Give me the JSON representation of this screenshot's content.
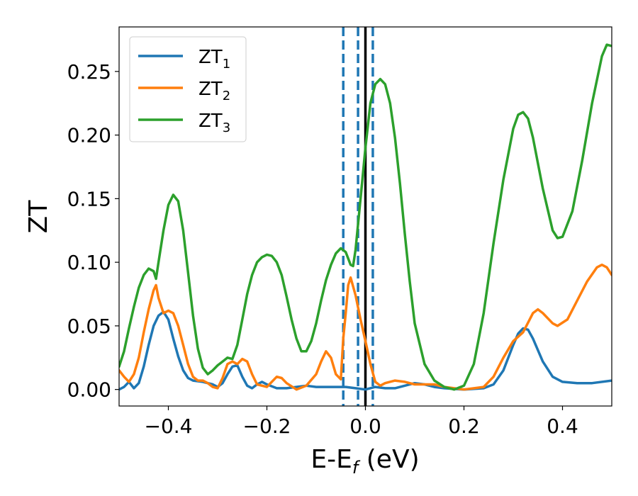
{
  "chart_data": {
    "type": "line",
    "xlabel_main": "E-E",
    "xlabel_sub": "f",
    "xlabel_unit": " (eV)",
    "ylabel": "ZT",
    "xlim": [
      -0.5,
      0.5
    ],
    "ylim": [
      -0.013,
      0.285
    ],
    "grid": false,
    "legend_position": "top-left",
    "x_ticks": [
      -0.4,
      -0.2,
      0.0,
      0.2,
      0.4
    ],
    "x_tick_labels": [
      "−0.4",
      "−0.2",
      "0.0",
      "0.2",
      "0.4"
    ],
    "y_ticks": [
      0.0,
      0.05,
      0.1,
      0.15,
      0.2,
      0.25
    ],
    "y_tick_labels": [
      "0.00",
      "0.05",
      "0.10",
      "0.15",
      "0.20",
      "0.25"
    ],
    "vlines": [
      {
        "x": -0.045,
        "style": "dashed",
        "color": "#1f77b4"
      },
      {
        "x": -0.015,
        "style": "dashed",
        "color": "#1f77b4"
      },
      {
        "x": 0.0,
        "style": "solid",
        "color": "#000000"
      },
      {
        "x": 0.015,
        "style": "dashed",
        "color": "#1f77b4"
      }
    ],
    "series": [
      {
        "name": "ZT",
        "sub": "1",
        "color": "#1f77b4",
        "points": [
          [
            -0.5,
            0.0
          ],
          [
            -0.49,
            0.002
          ],
          [
            -0.48,
            0.006
          ],
          [
            -0.47,
            0.001
          ],
          [
            -0.46,
            0.005
          ],
          [
            -0.45,
            0.018
          ],
          [
            -0.44,
            0.035
          ],
          [
            -0.43,
            0.05
          ],
          [
            -0.42,
            0.058
          ],
          [
            -0.41,
            0.061
          ],
          [
            -0.4,
            0.055
          ],
          [
            -0.39,
            0.04
          ],
          [
            -0.38,
            0.026
          ],
          [
            -0.37,
            0.015
          ],
          [
            -0.36,
            0.009
          ],
          [
            -0.35,
            0.007
          ],
          [
            -0.33,
            0.006
          ],
          [
            -0.31,
            0.004
          ],
          [
            -0.3,
            0.002
          ],
          [
            -0.29,
            0.005
          ],
          [
            -0.28,
            0.012
          ],
          [
            -0.27,
            0.018
          ],
          [
            -0.26,
            0.019
          ],
          [
            -0.25,
            0.01
          ],
          [
            -0.24,
            0.003
          ],
          [
            -0.23,
            0.001
          ],
          [
            -0.22,
            0.004
          ],
          [
            -0.21,
            0.006
          ],
          [
            -0.2,
            0.004
          ],
          [
            -0.18,
            0.001
          ],
          [
            -0.16,
            0.001
          ],
          [
            -0.14,
            0.002
          ],
          [
            -0.12,
            0.003
          ],
          [
            -0.1,
            0.002
          ],
          [
            -0.08,
            0.002
          ],
          [
            -0.06,
            0.002
          ],
          [
            -0.04,
            0.002
          ],
          [
            -0.02,
            0.001
          ],
          [
            0.0,
            0.0
          ],
          [
            0.02,
            0.002
          ],
          [
            0.04,
            0.001
          ],
          [
            0.06,
            0.001
          ],
          [
            0.08,
            0.003
          ],
          [
            0.1,
            0.005
          ],
          [
            0.12,
            0.004
          ],
          [
            0.14,
            0.002
          ],
          [
            0.16,
            0.001
          ],
          [
            0.2,
            0.0
          ],
          [
            0.24,
            0.001
          ],
          [
            0.26,
            0.004
          ],
          [
            0.28,
            0.015
          ],
          [
            0.3,
            0.035
          ],
          [
            0.31,
            0.044
          ],
          [
            0.32,
            0.048
          ],
          [
            0.33,
            0.047
          ],
          [
            0.34,
            0.04
          ],
          [
            0.36,
            0.022
          ],
          [
            0.38,
            0.01
          ],
          [
            0.4,
            0.006
          ],
          [
            0.43,
            0.005
          ],
          [
            0.46,
            0.005
          ],
          [
            0.5,
            0.007
          ]
        ]
      },
      {
        "name": "ZT",
        "sub": "2",
        "color": "#ff7f0e",
        "points": [
          [
            -0.5,
            0.015
          ],
          [
            -0.49,
            0.01
          ],
          [
            -0.48,
            0.006
          ],
          [
            -0.47,
            0.012
          ],
          [
            -0.46,
            0.025
          ],
          [
            -0.45,
            0.045
          ],
          [
            -0.44,
            0.063
          ],
          [
            -0.43,
            0.078
          ],
          [
            -0.425,
            0.082
          ],
          [
            -0.42,
            0.072
          ],
          [
            -0.41,
            0.06
          ],
          [
            -0.4,
            0.062
          ],
          [
            -0.39,
            0.06
          ],
          [
            -0.38,
            0.05
          ],
          [
            -0.37,
            0.035
          ],
          [
            -0.36,
            0.02
          ],
          [
            -0.35,
            0.01
          ],
          [
            -0.34,
            0.007
          ],
          [
            -0.33,
            0.007
          ],
          [
            -0.32,
            0.005
          ],
          [
            -0.31,
            0.002
          ],
          [
            -0.3,
            0.001
          ],
          [
            -0.29,
            0.009
          ],
          [
            -0.28,
            0.02
          ],
          [
            -0.27,
            0.022
          ],
          [
            -0.26,
            0.02
          ],
          [
            -0.25,
            0.024
          ],
          [
            -0.24,
            0.022
          ],
          [
            -0.23,
            0.012
          ],
          [
            -0.22,
            0.004
          ],
          [
            -0.2,
            0.002
          ],
          [
            -0.19,
            0.006
          ],
          [
            -0.18,
            0.01
          ],
          [
            -0.17,
            0.009
          ],
          [
            -0.16,
            0.005
          ],
          [
            -0.14,
            0.0
          ],
          [
            -0.12,
            0.003
          ],
          [
            -0.1,
            0.012
          ],
          [
            -0.09,
            0.022
          ],
          [
            -0.08,
            0.03
          ],
          [
            -0.07,
            0.025
          ],
          [
            -0.06,
            0.012
          ],
          [
            -0.05,
            0.008
          ],
          [
            -0.045,
            0.04
          ],
          [
            -0.04,
            0.06
          ],
          [
            -0.035,
            0.082
          ],
          [
            -0.03,
            0.088
          ],
          [
            -0.02,
            0.074
          ],
          [
            -0.01,
            0.055
          ],
          [
            0.0,
            0.038
          ],
          [
            0.01,
            0.02
          ],
          [
            0.02,
            0.006
          ],
          [
            0.03,
            0.003
          ],
          [
            0.04,
            0.005
          ],
          [
            0.06,
            0.007
          ],
          [
            0.08,
            0.006
          ],
          [
            0.1,
            0.004
          ],
          [
            0.12,
            0.004
          ],
          [
            0.14,
            0.004
          ],
          [
            0.16,
            0.002
          ],
          [
            0.2,
            0.0
          ],
          [
            0.24,
            0.002
          ],
          [
            0.26,
            0.01
          ],
          [
            0.28,
            0.025
          ],
          [
            0.3,
            0.038
          ],
          [
            0.32,
            0.045
          ],
          [
            0.34,
            0.06
          ],
          [
            0.35,
            0.063
          ],
          [
            0.36,
            0.06
          ],
          [
            0.38,
            0.052
          ],
          [
            0.39,
            0.05
          ],
          [
            0.41,
            0.055
          ],
          [
            0.43,
            0.07
          ],
          [
            0.45,
            0.085
          ],
          [
            0.47,
            0.096
          ],
          [
            0.48,
            0.098
          ],
          [
            0.49,
            0.096
          ],
          [
            0.5,
            0.09
          ]
        ]
      },
      {
        "name": "ZT",
        "sub": "3",
        "color": "#2ca02c",
        "points": [
          [
            -0.5,
            0.018
          ],
          [
            -0.49,
            0.03
          ],
          [
            -0.48,
            0.048
          ],
          [
            -0.47,
            0.065
          ],
          [
            -0.46,
            0.08
          ],
          [
            -0.45,
            0.09
          ],
          [
            -0.44,
            0.095
          ],
          [
            -0.43,
            0.093
          ],
          [
            -0.425,
            0.087
          ],
          [
            -0.42,
            0.1
          ],
          [
            -0.41,
            0.125
          ],
          [
            -0.4,
            0.145
          ],
          [
            -0.39,
            0.153
          ],
          [
            -0.38,
            0.148
          ],
          [
            -0.37,
            0.125
          ],
          [
            -0.36,
            0.092
          ],
          [
            -0.35,
            0.058
          ],
          [
            -0.34,
            0.032
          ],
          [
            -0.33,
            0.017
          ],
          [
            -0.32,
            0.012
          ],
          [
            -0.31,
            0.015
          ],
          [
            -0.3,
            0.019
          ],
          [
            -0.29,
            0.022
          ],
          [
            -0.28,
            0.025
          ],
          [
            -0.27,
            0.024
          ],
          [
            -0.26,
            0.035
          ],
          [
            -0.25,
            0.055
          ],
          [
            -0.24,
            0.075
          ],
          [
            -0.23,
            0.09
          ],
          [
            -0.22,
            0.1
          ],
          [
            -0.21,
            0.104
          ],
          [
            -0.2,
            0.106
          ],
          [
            -0.19,
            0.105
          ],
          [
            -0.18,
            0.1
          ],
          [
            -0.17,
            0.09
          ],
          [
            -0.16,
            0.073
          ],
          [
            -0.15,
            0.055
          ],
          [
            -0.14,
            0.04
          ],
          [
            -0.13,
            0.03
          ],
          [
            -0.12,
            0.03
          ],
          [
            -0.11,
            0.038
          ],
          [
            -0.1,
            0.052
          ],
          [
            -0.09,
            0.07
          ],
          [
            -0.08,
            0.086
          ],
          [
            -0.07,
            0.098
          ],
          [
            -0.06,
            0.107
          ],
          [
            -0.05,
            0.111
          ],
          [
            -0.04,
            0.108
          ],
          [
            -0.03,
            0.098
          ],
          [
            -0.025,
            0.097
          ],
          [
            -0.02,
            0.11
          ],
          [
            -0.01,
            0.15
          ],
          [
            0.0,
            0.19
          ],
          [
            0.01,
            0.225
          ],
          [
            0.02,
            0.24
          ],
          [
            0.03,
            0.244
          ],
          [
            0.04,
            0.24
          ],
          [
            0.05,
            0.225
          ],
          [
            0.06,
            0.198
          ],
          [
            0.07,
            0.162
          ],
          [
            0.08,
            0.122
          ],
          [
            0.09,
            0.085
          ],
          [
            0.1,
            0.052
          ],
          [
            0.12,
            0.02
          ],
          [
            0.14,
            0.007
          ],
          [
            0.16,
            0.002
          ],
          [
            0.18,
            0.0
          ],
          [
            0.2,
            0.003
          ],
          [
            0.22,
            0.02
          ],
          [
            0.24,
            0.06
          ],
          [
            0.26,
            0.115
          ],
          [
            0.28,
            0.165
          ],
          [
            0.3,
            0.205
          ],
          [
            0.31,
            0.216
          ],
          [
            0.32,
            0.218
          ],
          [
            0.33,
            0.213
          ],
          [
            0.34,
            0.198
          ],
          [
            0.36,
            0.158
          ],
          [
            0.38,
            0.125
          ],
          [
            0.39,
            0.119
          ],
          [
            0.4,
            0.12
          ],
          [
            0.42,
            0.14
          ],
          [
            0.44,
            0.18
          ],
          [
            0.46,
            0.225
          ],
          [
            0.48,
            0.262
          ],
          [
            0.49,
            0.271
          ],
          [
            0.5,
            0.27
          ]
        ]
      }
    ]
  }
}
